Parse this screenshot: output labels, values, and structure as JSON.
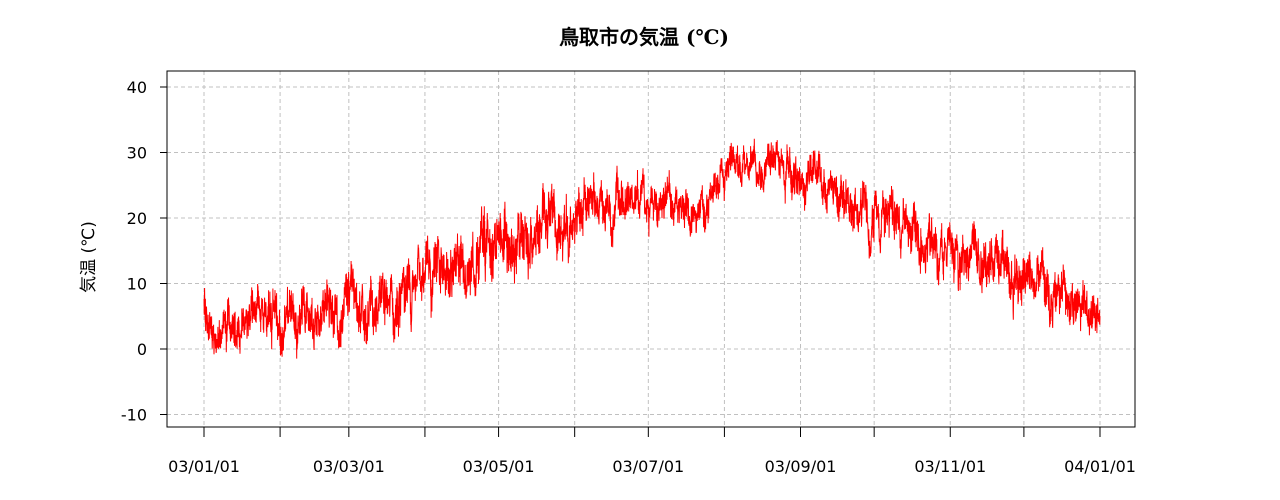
{
  "chart_data": {
    "type": "line",
    "title": "鳥取市の気温 (℃)",
    "xlabel": "",
    "ylabel": "気温 (℃)",
    "ylim": [
      -12,
      42
    ],
    "yticks": [
      -10,
      0,
      10,
      20,
      30,
      40
    ],
    "xlim": [
      "2003-01-01",
      "2004-01-01"
    ],
    "x_tick_labels": [
      "03/01/01",
      "03/03/01",
      "03/05/01",
      "03/07/01",
      "03/09/01",
      "03/11/01",
      "04/01/01"
    ],
    "x_tick_dates": [
      "2003-01-01",
      "2003-03-01",
      "2003-05-01",
      "2003-07-01",
      "2003-09-01",
      "2003-11-01",
      "2004-01-01"
    ],
    "x_minor_tick_dates": [
      "2003-02-01",
      "2003-04-01",
      "2003-06-01",
      "2003-08-01",
      "2003-10-01",
      "2003-12-01"
    ],
    "grid": true,
    "series": [
      {
        "color": "#ff0000",
        "points": [
          [
            "2003-01-01",
            5
          ],
          [
            "2003-01-06",
            2
          ],
          [
            "2003-01-11",
            4
          ],
          [
            "2003-01-16",
            7
          ],
          [
            "2003-01-21",
            8
          ],
          [
            "2003-01-26",
            5
          ],
          [
            "2003-01-31",
            3
          ],
          [
            "2003-02-05",
            4
          ],
          [
            "2003-02-10",
            5
          ],
          [
            "2003-02-15",
            7
          ],
          [
            "2003-02-20",
            6
          ],
          [
            "2003-02-25",
            6
          ],
          [
            "2003-03-02",
            8
          ],
          [
            "2003-03-07",
            7
          ],
          [
            "2003-03-12",
            5
          ],
          [
            "2003-03-17",
            6
          ],
          [
            "2003-03-22",
            7
          ],
          [
            "2003-03-27",
            9
          ],
          [
            "2003-04-01",
            10
          ],
          [
            "2003-04-06",
            11
          ],
          [
            "2003-04-11",
            12
          ],
          [
            "2003-04-16",
            13
          ],
          [
            "2003-04-21",
            14
          ],
          [
            "2003-04-26",
            15
          ],
          [
            "2003-05-01",
            16
          ],
          [
            "2003-05-06",
            17
          ],
          [
            "2003-05-11",
            18
          ],
          [
            "2003-05-16",
            17
          ],
          [
            "2003-05-21",
            18
          ],
          [
            "2003-05-26",
            19
          ],
          [
            "2003-05-31",
            20
          ],
          [
            "2003-06-05",
            21
          ],
          [
            "2003-06-10",
            21
          ],
          [
            "2003-06-15",
            22
          ],
          [
            "2003-06-20",
            22
          ],
          [
            "2003-06-25",
            23
          ],
          [
            "2003-06-30",
            23
          ],
          [
            "2003-07-05",
            22
          ],
          [
            "2003-07-10",
            23
          ],
          [
            "2003-07-15",
            22
          ],
          [
            "2003-07-20",
            22
          ],
          [
            "2003-07-25",
            23
          ],
          [
            "2003-07-30",
            25
          ],
          [
            "2003-08-04",
            27
          ],
          [
            "2003-08-09",
            27
          ],
          [
            "2003-08-14",
            26
          ],
          [
            "2003-08-19",
            27
          ],
          [
            "2003-08-24",
            27
          ],
          [
            "2003-08-29",
            26
          ],
          [
            "2003-09-03",
            26
          ],
          [
            "2003-09-08",
            27
          ],
          [
            "2003-09-13",
            26
          ],
          [
            "2003-09-18",
            24
          ],
          [
            "2003-09-23",
            22
          ],
          [
            "2003-09-28",
            21
          ],
          [
            "2003-10-03",
            20
          ],
          [
            "2003-10-08",
            19
          ],
          [
            "2003-10-13",
            18
          ],
          [
            "2003-10-18",
            18
          ],
          [
            "2003-10-23",
            17
          ],
          [
            "2003-10-28",
            16
          ],
          [
            "2003-11-02",
            15
          ],
          [
            "2003-11-07",
            15
          ],
          [
            "2003-11-12",
            15
          ],
          [
            "2003-11-17",
            14
          ],
          [
            "2003-11-22",
            13
          ],
          [
            "2003-11-27",
            12
          ],
          [
            "2003-12-02",
            11
          ],
          [
            "2003-12-07",
            10
          ],
          [
            "2003-12-12",
            9
          ],
          [
            "2003-12-17",
            8
          ],
          [
            "2003-12-22",
            7
          ],
          [
            "2003-12-27",
            6
          ],
          [
            "2004-01-01",
            7
          ]
        ],
        "amplitude": [
          [
            "2003-01-01",
            3.5
          ],
          [
            "2003-02-15",
            4.0
          ],
          [
            "2003-04-01",
            4.5
          ],
          [
            "2003-05-01",
            5.0
          ],
          [
            "2003-06-15",
            3.5
          ],
          [
            "2003-07-15",
            3.0
          ],
          [
            "2003-08-15",
            3.0
          ],
          [
            "2003-09-15",
            3.5
          ],
          [
            "2003-10-15",
            4.0
          ],
          [
            "2003-12-01",
            4.0
          ],
          [
            "2004-01-01",
            3.5
          ]
        ]
      }
    ]
  }
}
